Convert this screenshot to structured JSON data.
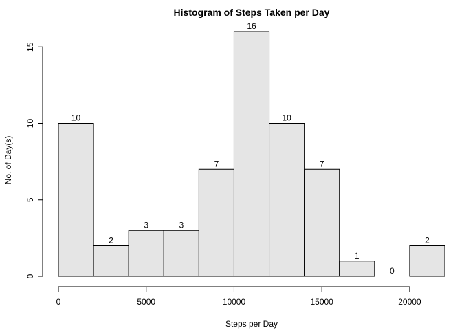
{
  "chart_data": {
    "type": "bar",
    "title": "Histogram of Steps Taken per Day",
    "xlabel": "Steps per Day",
    "ylabel": "No. of Day(s)",
    "bins": [
      {
        "start": 0,
        "end": 2000,
        "count": 10
      },
      {
        "start": 2000,
        "end": 4000,
        "count": 2
      },
      {
        "start": 4000,
        "end": 6000,
        "count": 3
      },
      {
        "start": 6000,
        "end": 8000,
        "count": 3
      },
      {
        "start": 8000,
        "end": 10000,
        "count": 7
      },
      {
        "start": 10000,
        "end": 12000,
        "count": 16
      },
      {
        "start": 12000,
        "end": 14000,
        "count": 10
      },
      {
        "start": 14000,
        "end": 16000,
        "count": 7
      },
      {
        "start": 16000,
        "end": 18000,
        "count": 1
      },
      {
        "start": 18000,
        "end": 20000,
        "count": 0
      },
      {
        "start": 20000,
        "end": 22000,
        "count": 2
      }
    ],
    "xlim": [
      0,
      22000
    ],
    "ylim": [
      0,
      16
    ],
    "x_ticks": [
      0,
      5000,
      10000,
      15000,
      20000
    ],
    "y_ticks": [
      0,
      5,
      10,
      15
    ],
    "grid": false,
    "legend": "none"
  }
}
